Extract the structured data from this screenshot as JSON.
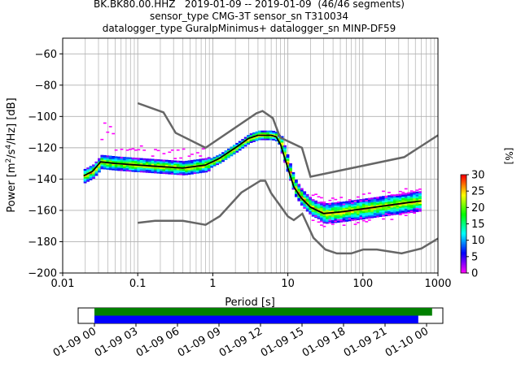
{
  "header": {
    "line1": "BK.BK80.00.HHZ   2019-01-09 -- 2019-01-09  (46/46 segments)",
    "line2": "sensor_type CMG-3T sensor_sn T310034",
    "line3": "datalogger_type GuralpMinimus+ datalogger_sn MINP-DF59"
  },
  "chart_data": [
    {
      "type": "heatmap",
      "title": "BK.BK80.00.HHZ   2019-01-09 -- 2019-01-09  (46/46 segments)",
      "xlabel": "Period [s]",
      "ylabel": "Power [m²/s⁴/Hz] [dB]",
      "x_scale": "log",
      "xlim": [
        0.01,
        1000
      ],
      "ylim": [
        -200,
        -50
      ],
      "x_ticks": [
        0.01,
        0.1,
        1,
        10,
        100,
        1000
      ],
      "x_tick_labels": [
        "0.01",
        "0.1",
        "1",
        "10",
        "100",
        "1000"
      ],
      "y_ticks": [
        -200,
        -180,
        -160,
        -140,
        -120,
        -100,
        -80,
        -60
      ],
      "grid": true,
      "colorbar": {
        "label": "[%]",
        "min": 0,
        "max": 30,
        "ticks": [
          0,
          5,
          10,
          15,
          20,
          25,
          30
        ],
        "colormap": [
          "#ff00ff",
          "#0000ff",
          "#00ffff",
          "#00ff00",
          "#ffff00",
          "#ff0000"
        ]
      },
      "series": [
        {
          "name": "",
          "role": "mean-psd",
          "color": "#000000",
          "x": [
            0.019,
            0.025,
            0.032,
            0.05,
            0.1,
            0.2,
            0.4,
            0.8,
            1.2,
            2,
            3,
            4,
            5,
            6,
            7,
            8,
            9,
            10,
            12,
            15,
            20,
            30,
            50,
            100,
            200,
            400,
            600
          ],
          "y": [
            -138,
            -135,
            -129,
            -130,
            -131,
            -132,
            -133,
            -131,
            -127,
            -120,
            -114,
            -112,
            -112,
            -112,
            -113,
            -118,
            -126,
            -133,
            -145,
            -152,
            -158,
            -162,
            -161,
            -159,
            -157,
            -155,
            -154
          ]
        },
        {
          "name": "",
          "role": "new-high-noise-model",
          "color": "#666666",
          "x": [
            0.1,
            0.22,
            0.32,
            0.8,
            3.8,
            4.6,
            6.3,
            7.9,
            15.4,
            20,
            354.8,
            1000
          ],
          "y": [
            -91.5,
            -97.4,
            -110.5,
            -120,
            -98,
            -96.5,
            -101,
            -113.5,
            -120,
            -138.5,
            -126,
            -112
          ]
        },
        {
          "name": "",
          "role": "new-low-noise-model",
          "color": "#666666",
          "x": [
            0.1,
            0.17,
            0.4,
            0.8,
            1.24,
            2.4,
            4.3,
            5,
            6,
            10,
            12,
            15.6,
            21.9,
            31.6,
            45,
            70,
            101,
            154,
            328,
            600,
            1000
          ],
          "y": [
            -168,
            -166.7,
            -166.7,
            -169.2,
            -163.7,
            -148.6,
            -141.1,
            -141.1,
            -149,
            -163.8,
            -166.2,
            -162.1,
            -177.5,
            -185,
            -187.5,
            -187.5,
            -185,
            -185,
            -187.5,
            -184.4,
            -178
          ]
        }
      ]
    },
    {
      "type": "timeline",
      "x_tick_labels": [
        "01-09 00",
        "01-09 03",
        "01-09 06",
        "01-09 09",
        "01-09 12",
        "01-09 15",
        "01-09 18",
        "01-09 21",
        "01-10 00"
      ],
      "bars": [
        {
          "name": "",
          "color": "#008000",
          "start": "01-09 00",
          "end_hours": 24.4
        },
        {
          "name": "",
          "color": "#0000ff",
          "start": "01-09 00",
          "end_hours": 23.4
        }
      ]
    }
  ]
}
